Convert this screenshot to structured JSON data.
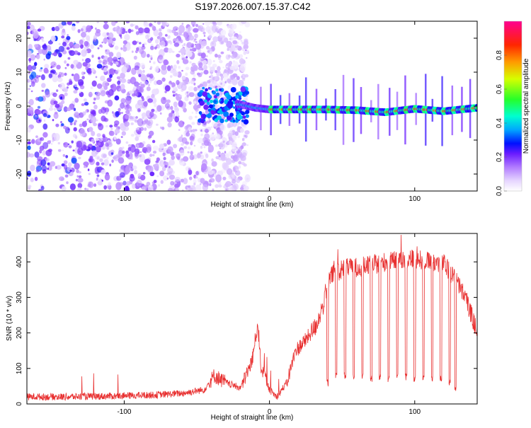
{
  "page_title": "S197.2026.007.15.37.C42",
  "chart_data": [
    {
      "type": "heatmap",
      "subtype": "spectrogram",
      "xlabel": "Height of straight line (km)",
      "ylabel": "Frequency (Hz)",
      "xlim": [
        -167,
        143
      ],
      "ylim": [
        -25,
        25
      ],
      "x_ticks": [
        {
          "value": -100,
          "label": "-100"
        },
        {
          "value": 0,
          "label": "0"
        },
        {
          "value": 100,
          "label": "100"
        }
      ],
      "y_ticks": [
        {
          "value": -20,
          "label": "-20"
        },
        {
          "value": -10,
          "label": "-10"
        },
        {
          "value": 0,
          "label": "0"
        },
        {
          "value": 10,
          "label": "10"
        },
        {
          "value": 20,
          "label": "20"
        }
      ],
      "description_series": {
        "dominant_frequency_hz": [
          [
            -20,
            0.5
          ],
          [
            -10,
            -0.5
          ],
          [
            0,
            -1
          ],
          [
            20,
            -1
          ],
          [
            40,
            -1
          ],
          [
            60,
            -1.2
          ],
          [
            80,
            -1.8
          ],
          [
            100,
            -0.8
          ],
          [
            120,
            -1.5
          ],
          [
            143,
            -0.5
          ]
        ]
      },
      "colorbar": {
        "label": "Normalized spectral amplitude",
        "range": [
          0,
          1
        ],
        "ticks": [
          {
            "value": 0.0,
            "label": "0.0"
          },
          {
            "value": 0.2,
            "label": "0.2"
          },
          {
            "value": 0.4,
            "label": "0.4"
          },
          {
            "value": 0.6,
            "label": "0.6"
          },
          {
            "value": 0.8,
            "label": "0.8"
          }
        ]
      }
    },
    {
      "type": "line",
      "xlabel": "Height of straight line (km)",
      "ylabel": "SNR (10 * v/v)",
      "xlim": [
        -167,
        143
      ],
      "ylim": [
        0,
        480
      ],
      "x_ticks": [
        {
          "value": -100,
          "label": "-100"
        },
        {
          "value": 0,
          "label": "0"
        },
        {
          "value": 100,
          "label": "100"
        }
      ],
      "y_ticks": [
        {
          "value": 0,
          "label": "0"
        },
        {
          "value": 100,
          "label": "100"
        },
        {
          "value": 200,
          "label": "200"
        },
        {
          "value": 300,
          "label": "300"
        },
        {
          "value": 400,
          "label": "400"
        }
      ],
      "series": [
        {
          "name": "SNR",
          "color": "#e83030",
          "points": [
            [
              -167,
              20
            ],
            [
              -140,
              20
            ],
            [
              -110,
              22
            ],
            [
              -80,
              25
            ],
            [
              -60,
              30
            ],
            [
              -45,
              40
            ],
            [
              -38,
              80
            ],
            [
              -30,
              60
            ],
            [
              -20,
              45
            ],
            [
              -12,
              120
            ],
            [
              -8,
              230
            ],
            [
              -6,
              110
            ],
            [
              0,
              40
            ],
            [
              5,
              20
            ],
            [
              12,
              60
            ],
            [
              18,
              150
            ],
            [
              25,
              180
            ],
            [
              32,
              220
            ],
            [
              38,
              290
            ],
            [
              42,
              360
            ],
            [
              50,
              380
            ],
            [
              60,
              385
            ],
            [
              70,
              390
            ],
            [
              80,
              400
            ],
            [
              90,
              405
            ],
            [
              100,
              410
            ],
            [
              110,
              400
            ],
            [
              120,
              395
            ],
            [
              128,
              350
            ],
            [
              135,
              300
            ],
            [
              143,
              200
            ]
          ],
          "dropouts": [
            {
              "x": 40,
              "value": 60
            },
            {
              "x": 46,
              "value": 80
            },
            {
              "x": 52,
              "value": 80
            },
            {
              "x": 58,
              "value": 75
            },
            {
              "x": 64,
              "value": 80
            },
            {
              "x": 70,
              "value": 70
            },
            {
              "x": 76,
              "value": 75
            },
            {
              "x": 82,
              "value": 70
            },
            {
              "x": 88,
              "value": 75
            },
            {
              "x": 94,
              "value": 75
            },
            {
              "x": 100,
              "value": 70
            },
            {
              "x": 106,
              "value": 75
            },
            {
              "x": 112,
              "value": 70
            },
            {
              "x": 118,
              "value": 70
            },
            {
              "x": 124,
              "value": 60
            },
            {
              "x": 128,
              "value": 45
            }
          ]
        }
      ]
    }
  ]
}
